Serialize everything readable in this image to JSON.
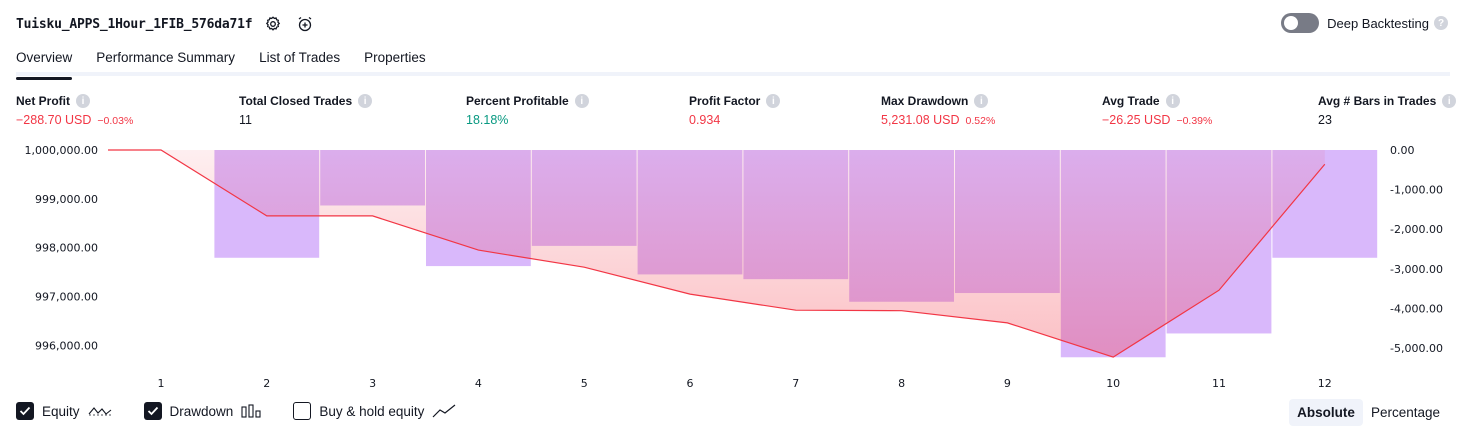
{
  "header": {
    "strategy_title": "Tuisku_APPS_1Hour_1FIB_576da71f",
    "settings_icon": "gear-icon",
    "alert_icon": "alarm-clock-plus-icon",
    "deep_backtesting_label": "Deep Backtesting",
    "deep_backtesting_enabled": false
  },
  "tabs": [
    {
      "label": "Overview",
      "active": true
    },
    {
      "label": "Performance Summary",
      "active": false
    },
    {
      "label": "List of Trades",
      "active": false
    },
    {
      "label": "Properties",
      "active": false
    }
  ],
  "metrics": [
    {
      "label": "Net Profit",
      "value": "−288.70 USD",
      "pct": "−0.03%",
      "color": "#f23645"
    },
    {
      "label": "Total Closed Trades",
      "value": "11",
      "pct": "",
      "color": "#131722"
    },
    {
      "label": "Percent Profitable",
      "value": "18.18%",
      "pct": "",
      "color": "#089981"
    },
    {
      "label": "Profit Factor",
      "value": "0.934",
      "pct": "",
      "color": "#f23645"
    },
    {
      "label": "Max Drawdown",
      "value": "5,231.08 USD",
      "pct": "0.52%",
      "color": "#f23645"
    },
    {
      "label": "Avg Trade",
      "value": "−26.25 USD",
      "pct": "−0.39%",
      "color": "#f23645"
    },
    {
      "label": "Avg # Bars in Trades",
      "value": "23",
      "pct": "",
      "color": "#131722"
    }
  ],
  "chart_data": {
    "type": "bar",
    "x": [
      1,
      2,
      3,
      4,
      5,
      6,
      7,
      8,
      9,
      10,
      11,
      12
    ],
    "equity": [
      1000000.0,
      998650.0,
      998650.0,
      997950.0,
      997600.0,
      997050.0,
      996720.0,
      996710.0,
      996460.0,
      995760.0,
      997130.0,
      999710.0
    ],
    "drawdown": [
      null,
      -2720,
      -1400,
      -2930,
      -2420,
      -3140,
      -3260,
      -3830,
      -3610,
      -5231.08,
      -4630,
      -2720
    ],
    "left_axis_ticks": [
      "1,000,000.00",
      "999,000.00",
      "998,000.00",
      "997,000.00",
      "996,000.00"
    ],
    "right_axis_ticks": [
      "0.00",
      "-1,000.00",
      "-2,000.00",
      "-3,000.00",
      "-4,000.00",
      "-5,000.00"
    ],
    "left_ylim": [
      995700,
      1000000
    ],
    "right_ylim": [
      -5300,
      0
    ],
    "equity_color": "#f23645",
    "drawdown_color": "#d9b8fb"
  },
  "legend": {
    "equity_label": "Equity",
    "equity_checked": true,
    "drawdown_label": "Drawdown",
    "drawdown_checked": true,
    "buyhold_label": "Buy & hold equity",
    "buyhold_checked": false
  },
  "mode": {
    "absolute_label": "Absolute",
    "percentage_label": "Percentage",
    "selected": "Absolute"
  }
}
